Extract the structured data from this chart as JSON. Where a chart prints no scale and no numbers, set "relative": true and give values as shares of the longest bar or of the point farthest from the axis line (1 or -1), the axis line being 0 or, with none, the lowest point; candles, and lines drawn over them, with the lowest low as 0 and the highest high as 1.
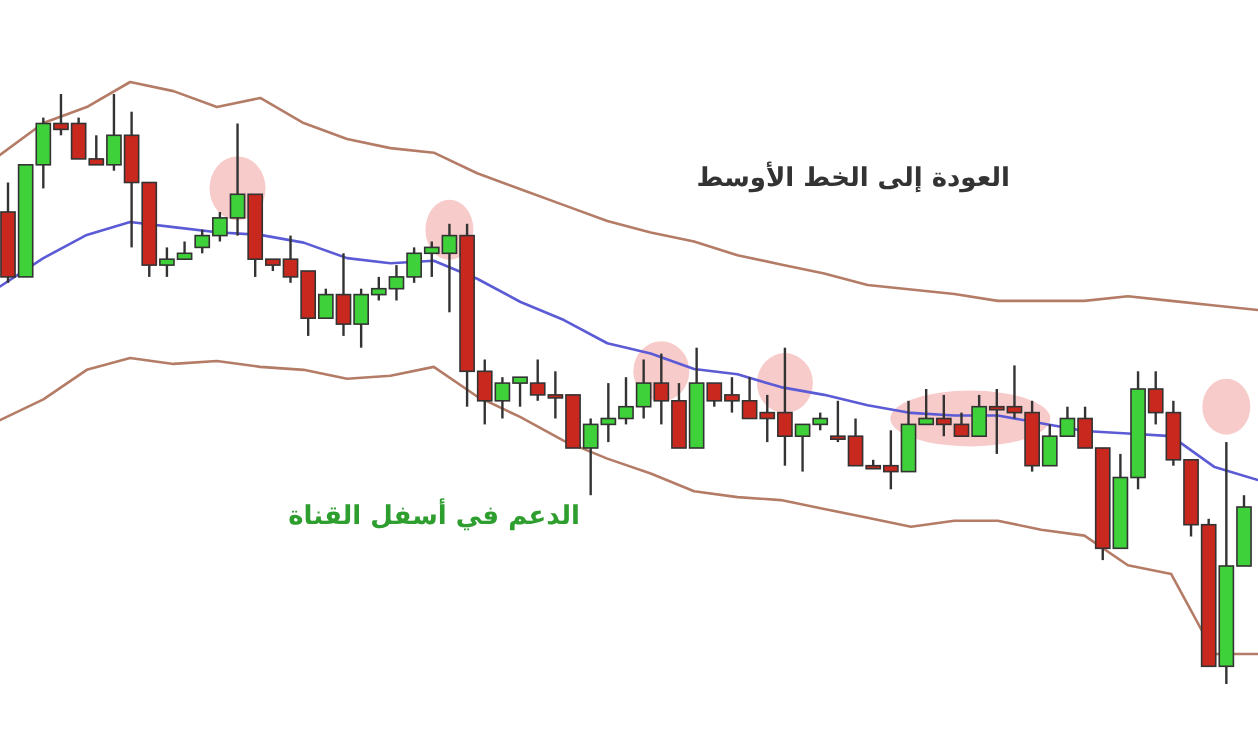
{
  "chart_data": [
    {
      "type": "candlestick",
      "relative": true,
      "categories": [
        null,
        null,
        null,
        null,
        null,
        null,
        null,
        null,
        null,
        null,
        null,
        null,
        null,
        null,
        null,
        null,
        null,
        null,
        null,
        null,
        null,
        null,
        null,
        null,
        null,
        null,
        null,
        null,
        null,
        null,
        null,
        null,
        null,
        null,
        null,
        null,
        null,
        null,
        null,
        null,
        null,
        null,
        null,
        null,
        null,
        null,
        null,
        null,
        null,
        null,
        null,
        null,
        null,
        null,
        null,
        null,
        null,
        null,
        null,
        null,
        null,
        null,
        null,
        null,
        null,
        null,
        null,
        null,
        null,
        null,
        null
      ],
      "ohlc": [
        [
          0.8,
          0.85,
          0.68,
          0.69
        ],
        [
          0.69,
          0.88,
          0.69,
          0.88
        ],
        [
          0.88,
          0.96,
          0.84,
          0.95
        ],
        [
          0.95,
          1.0,
          0.93,
          0.94
        ],
        [
          0.95,
          0.96,
          0.89,
          0.89
        ],
        [
          0.89,
          0.93,
          0.88,
          0.88
        ],
        [
          0.88,
          1.0,
          0.87,
          0.93
        ],
        [
          0.93,
          0.97,
          0.74,
          0.85
        ],
        [
          0.85,
          0.85,
          0.69,
          0.71
        ],
        [
          0.71,
          0.74,
          0.69,
          0.72
        ],
        [
          0.72,
          0.75,
          0.72,
          0.73
        ],
        [
          0.74,
          0.77,
          0.73,
          0.76
        ],
        [
          0.76,
          0.8,
          0.75,
          0.79
        ],
        [
          0.79,
          0.95,
          0.76,
          0.83
        ],
        [
          0.83,
          0.83,
          0.69,
          0.72
        ],
        [
          0.72,
          0.72,
          0.7,
          0.71
        ],
        [
          0.72,
          0.76,
          0.68,
          0.69
        ],
        [
          0.7,
          0.7,
          0.59,
          0.62
        ],
        [
          0.62,
          0.67,
          0.62,
          0.66
        ],
        [
          0.66,
          0.73,
          0.59,
          0.61
        ],
        [
          0.61,
          0.67,
          0.57,
          0.66
        ],
        [
          0.66,
          0.69,
          0.65,
          0.67
        ],
        [
          0.67,
          0.71,
          0.65,
          0.69
        ],
        [
          0.69,
          0.74,
          0.68,
          0.73
        ],
        [
          0.73,
          0.75,
          0.69,
          0.74
        ],
        [
          0.73,
          0.78,
          0.63,
          0.76
        ],
        [
          0.76,
          0.78,
          0.47,
          0.53
        ],
        [
          0.53,
          0.55,
          0.44,
          0.48
        ],
        [
          0.48,
          0.52,
          0.45,
          0.51
        ],
        [
          0.51,
          0.52,
          0.47,
          0.52
        ],
        [
          0.51,
          0.55,
          0.48,
          0.49
        ],
        [
          0.49,
          0.53,
          0.45,
          0.49
        ],
        [
          0.49,
          0.49,
          0.4,
          0.4
        ],
        [
          0.4,
          0.45,
          0.32,
          0.44
        ],
        [
          0.44,
          0.51,
          0.41,
          0.45
        ],
        [
          0.45,
          0.52,
          0.44,
          0.47
        ],
        [
          0.47,
          0.55,
          0.45,
          0.51
        ],
        [
          0.51,
          0.56,
          0.44,
          0.48
        ],
        [
          0.48,
          0.51,
          0.4,
          0.4
        ],
        [
          0.4,
          0.57,
          0.4,
          0.51
        ],
        [
          0.51,
          0.51,
          0.47,
          0.48
        ],
        [
          0.49,
          0.52,
          0.46,
          0.48
        ],
        [
          0.48,
          0.52,
          0.45,
          0.45
        ],
        [
          0.46,
          0.49,
          0.41,
          0.45
        ],
        [
          0.46,
          0.57,
          0.37,
          0.42
        ],
        [
          0.42,
          0.44,
          0.36,
          0.44
        ],
        [
          0.44,
          0.46,
          0.43,
          0.45
        ],
        [
          0.42,
          0.48,
          0.41,
          0.42
        ],
        [
          0.42,
          0.45,
          0.37,
          0.37
        ],
        [
          0.37,
          0.38,
          0.37,
          0.37
        ],
        [
          0.37,
          0.43,
          0.33,
          0.36
        ],
        [
          0.36,
          0.48,
          0.36,
          0.44
        ],
        [
          0.44,
          0.5,
          0.44,
          0.45
        ],
        [
          0.45,
          0.49,
          0.42,
          0.44
        ],
        [
          0.44,
          0.46,
          0.42,
          0.42
        ],
        [
          0.42,
          0.49,
          0.42,
          0.47
        ],
        [
          0.47,
          0.5,
          0.39,
          0.47
        ],
        [
          0.47,
          0.54,
          0.45,
          0.46
        ],
        [
          0.46,
          0.48,
          0.36,
          0.37
        ],
        [
          0.37,
          0.44,
          0.37,
          0.42
        ],
        [
          0.42,
          0.47,
          0.42,
          0.45
        ],
        [
          0.45,
          0.47,
          0.4,
          0.4
        ],
        [
          0.4,
          0.4,
          0.21,
          0.23
        ],
        [
          0.23,
          0.39,
          0.23,
          0.35
        ],
        [
          0.35,
          0.53,
          0.33,
          0.5
        ],
        [
          0.5,
          0.53,
          0.44,
          0.46
        ],
        [
          0.46,
          0.48,
          0.37,
          0.38
        ],
        [
          0.38,
          0.38,
          0.25,
          0.27
        ],
        [
          0.27,
          0.28,
          0.03,
          0.03
        ],
        [
          0.03,
          0.41,
          0.0,
          0.2
        ],
        [
          0.2,
          0.32,
          0.2,
          0.3
        ]
      ],
      "colors": [
        "#c8281e",
        "#3fd13a",
        "#3fd13a",
        "#c8281e",
        "#c8281e",
        "#c8281e",
        "#3fd13a",
        "#c8281e",
        "#c8281e",
        "#3fd13a",
        "#3fd13a",
        "#3fd13a",
        "#3fd13a",
        "#3fd13a",
        "#c8281e",
        "#c8281e",
        "#c8281e",
        "#c8281e",
        "#3fd13a",
        "#c8281e",
        "#3fd13a",
        "#3fd13a",
        "#3fd13a",
        "#3fd13a",
        "#3fd13a",
        "#3fd13a",
        "#c8281e",
        "#c8281e",
        "#3fd13a",
        "#3fd13a",
        "#c8281e",
        "#c8281e",
        "#c8281e",
        "#3fd13a",
        "#3fd13a",
        "#3fd13a",
        "#3fd13a",
        "#c8281e",
        "#c8281e",
        "#3fd13a",
        "#c8281e",
        "#c8281e",
        "#c8281e",
        "#c8281e",
        "#c8281e",
        "#3fd13a",
        "#3fd13a",
        "#c8281e",
        "#c8281e",
        "#c8281e",
        "#c8281e",
        "#3fd13a",
        "#3fd13a",
        "#c8281e",
        "#c8281e",
        "#3fd13a",
        "#c8281e",
        "#c8281e",
        "#c8281e",
        "#3fd13a",
        "#3fd13a",
        "#c8281e",
        "#c8281e",
        "#3fd13a",
        "#3fd13a",
        "#c8281e",
        "#c8281e",
        "#c8281e",
        "#c8281e",
        "#3fd13a",
        "#3fd13a"
      ],
      "annotations": [
        "العودة إلى الخط الأوسط",
        "الدعم في أسفل القناة"
      ]
    },
    {
      "type": "line",
      "relative": true,
      "color": "#b47c66",
      "categories": [
        null,
        null,
        null,
        null,
        null,
        null,
        null,
        null,
        null,
        null,
        null,
        null,
        null,
        null,
        null,
        null,
        null,
        null,
        null,
        null,
        null,
        null,
        null,
        null,
        null,
        null,
        null,
        null,
        null,
        null
      ],
      "values": [
        0.68,
        0.82,
        0.89,
        1,
        0.96,
        0.89,
        0.93,
        0.82,
        0.75,
        0.71,
        0.69,
        0.6,
        0.53,
        0.46,
        0.39,
        0.34,
        0.3,
        0.24,
        0.2,
        0.16,
        0.11,
        0.09,
        0.07,
        0.04,
        0.04,
        0.04,
        0.06,
        0.04,
        0.02,
        0
      ]
    },
    {
      "type": "line",
      "relative": true,
      "color": "#5b5bd6",
      "categories": [
        null,
        null,
        null,
        null,
        null,
        null,
        null,
        null,
        null,
        null,
        null,
        null,
        null,
        null,
        null,
        null,
        null,
        null,
        null,
        null,
        null,
        null,
        null,
        null,
        null,
        null,
        null,
        null,
        null,
        null
      ],
      "values": [
        0.75,
        0.86,
        0.95,
        1,
        0.98,
        0.96,
        0.95,
        0.92,
        0.86,
        0.84,
        0.85,
        0.78,
        0.69,
        0.62,
        0.53,
        0.49,
        0.43,
        0.41,
        0.36,
        0.33,
        0.29,
        0.26,
        0.25,
        0.25,
        0.22,
        0.19,
        0.18,
        0.17,
        0.05,
        0
      ]
    },
    {
      "type": "line",
      "relative": true,
      "color": "#b47c66",
      "categories": [
        null,
        null,
        null,
        null,
        null,
        null,
        null,
        null,
        null,
        null,
        null,
        null,
        null,
        null,
        null,
        null,
        null,
        null,
        null,
        null,
        null,
        null,
        null,
        null,
        null,
        null,
        null,
        null,
        null,
        null
      ],
      "values": [
        0.79,
        0.86,
        0.96,
        1,
        0.98,
        0.99,
        0.97,
        0.96,
        0.93,
        0.94,
        0.97,
        0.87,
        0.8,
        0.72,
        0.66,
        0.61,
        0.55,
        0.53,
        0.52,
        0.49,
        0.46,
        0.43,
        0.45,
        0.45,
        0.42,
        0.4,
        0.3,
        0.27,
        0,
        0
      ]
    }
  ]
}
